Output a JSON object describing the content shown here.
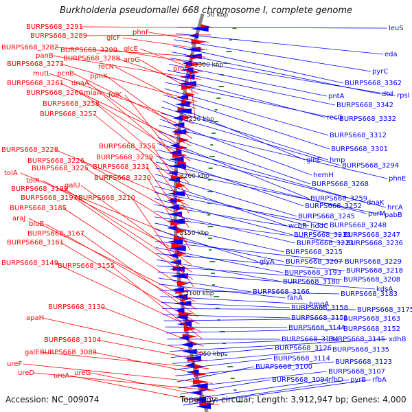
{
  "title": "Burkholderia pseudomallei 668 chromosome I, complete genome",
  "footer": {
    "accession": "Accession: NC_009074",
    "summary": "Topology: circular; Length: 3,912,947 bp; Genes: 4,000"
  },
  "scale_labels": [
    "50 kbp",
    "3300 kbp",
    "3250 kbp",
    "3200 kbp",
    "3150 kbp",
    "3100 kbp",
    "3050 kbp"
  ],
  "colors": {
    "forward": "#ff0000",
    "reverse": "#0000ff",
    "backbone": "#888888",
    "tick": "#2e8b2e"
  },
  "left_labels": [
    "BURPS668_3291",
    "BURPS668_3289",
    "phnF",
    "glcF",
    "BURPS668_3282",
    "BURPS668_3290",
    "glcE",
    "panB",
    "BURPS668_3288",
    "aroG",
    "BURPS668_3273",
    "recN",
    "proC",
    "mutL",
    "pcnB",
    "ppnK",
    "BURPS668_3261",
    "dnaA",
    "BURPS668_3260",
    "miaA",
    "folK",
    "BURPS668_3258",
    "BURPS668_3257",
    "BURPS668_3255",
    "BURPS668_3228",
    "BURPS668_3239",
    "BURPS668_3226",
    "BURPS668_3231",
    "BURPS668_3225",
    "tolA",
    "BURPS668_3230",
    "tolR",
    "galU",
    "BURPS668_3199",
    "BURPS668_3197",
    "BURPS668_3210",
    "BURPS668_3185",
    "araJ",
    "bluB",
    "BURPS668_3167",
    "BURPS668_3161",
    "BURPS668_3149",
    "BURPS668_3155",
    "BURPS668_3130",
    "apaH",
    "BURPS668_3104",
    "galE",
    "BURPS668_3088",
    "ureF",
    "ureD",
    "ureG",
    "ureA"
  ],
  "right_labels": [
    "leuS",
    "eda",
    "pyrC",
    "BURPS668_3362",
    "dtd",
    "rpsI",
    "pntA",
    "BURPS668_3342",
    "recG",
    "BURPS668_3332",
    "BURPS668_3312",
    "BURPS668_3301",
    "glnE",
    "hmp",
    "BURPS668_3294",
    "hemH",
    "phnE",
    "BURPS668_3268",
    "BURPS668_3259",
    "dnaK",
    "hrcA",
    "BURPS668_3252",
    "purM",
    "pabB",
    "BURPS668_3245",
    "wcbR",
    "hddC",
    "BURPS668_3248",
    "BURPS668_3233",
    "BURPS668_3247",
    "BURPS668_3223",
    "BURPS668_3236",
    "BURPS668_3215",
    "glyA",
    "BURPS668_3207",
    "BURPS668_3229",
    "BURPS668_3193",
    "BURPS668_3218",
    "BURPS668_3180",
    "BURPS668_3208",
    "kdsA",
    "BURPS668_3166",
    "fahA",
    "BURPS668_3183",
    "hmgA",
    "BURPS668_3158",
    "BURPS668_3175",
    "BURPS668_3151",
    "BURPS668_3163",
    "BURPS668_3144",
    "BURPS668_3152",
    "BURPS668_3134",
    "BURPS668_3145",
    "xdhB",
    "BURPS668_3126",
    "BURPS668_3135",
    "BURPS668_3114",
    "BURPS668_3123",
    "BURPS668_3100",
    "BURPS668_3107",
    "BURPS668_3094",
    "rfbD",
    "rfbA",
    "pyrB"
  ]
}
